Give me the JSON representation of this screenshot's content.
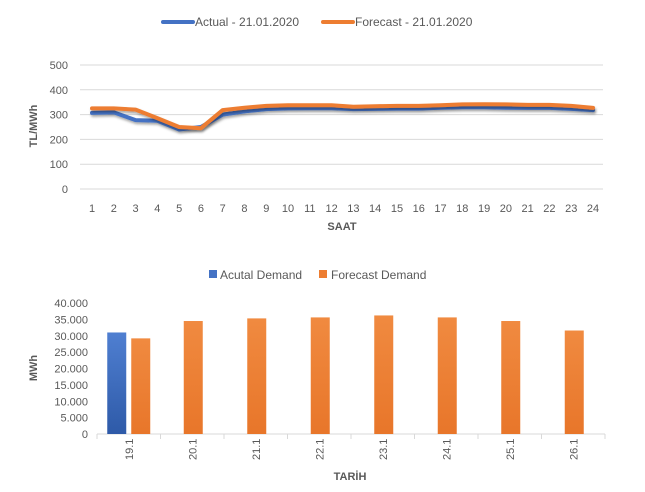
{
  "chart_data": [
    {
      "type": "line",
      "title": "",
      "xlabel": "SAAT",
      "ylabel": "TL/MWh",
      "ylim": [
        0,
        500
      ],
      "yticks": [
        "0",
        "100",
        "200",
        "300",
        "400",
        "500"
      ],
      "grid": true,
      "legend_position": "top",
      "x": [
        "1",
        "2",
        "3",
        "4",
        "5",
        "6",
        "7",
        "8",
        "9",
        "10",
        "11",
        "12",
        "13",
        "14",
        "15",
        "16",
        "17",
        "18",
        "19",
        "20",
        "21",
        "22",
        "23",
        "24"
      ],
      "series": [
        {
          "name": "Actual - 21.01.2020",
          "color": "#4472c4",
          "values": [
            307,
            309,
            278,
            275,
            240,
            250,
            300,
            313,
            322,
            325,
            326,
            326,
            322,
            323,
            324,
            324,
            328,
            330,
            330,
            328,
            327,
            327,
            323,
            318
          ]
        },
        {
          "name": "Forecast - 21.01.2020",
          "color": "#ed7d31",
          "values": [
            325,
            325,
            320,
            286,
            250,
            245,
            318,
            328,
            335,
            338,
            338,
            338,
            332,
            334,
            335,
            335,
            338,
            341,
            342,
            341,
            339,
            339,
            335,
            327
          ]
        }
      ]
    },
    {
      "type": "bar",
      "title": "",
      "xlabel": "TARİH",
      "ylabel": "MWh",
      "ylim": [
        0,
        40000
      ],
      "yticks": [
        "0",
        "5.000",
        "10.000",
        "15.000",
        "20.000",
        "25.000",
        "30.000",
        "35.000",
        "40.000"
      ],
      "grid": false,
      "legend_position": "top",
      "categories": [
        "19.1",
        "20.1",
        "21.1",
        "22.1",
        "23.1",
        "24.1",
        "25.1",
        "26.1"
      ],
      "series": [
        {
          "name": "Acutal Demand",
          "color": "#4472c4",
          "values": [
            31000,
            null,
            null,
            null,
            null,
            null,
            null,
            null
          ]
        },
        {
          "name": "Forecast Demand",
          "color": "#ed7d31",
          "values": [
            29200,
            34500,
            35300,
            35600,
            36200,
            35600,
            34500,
            31600
          ]
        }
      ]
    }
  ]
}
